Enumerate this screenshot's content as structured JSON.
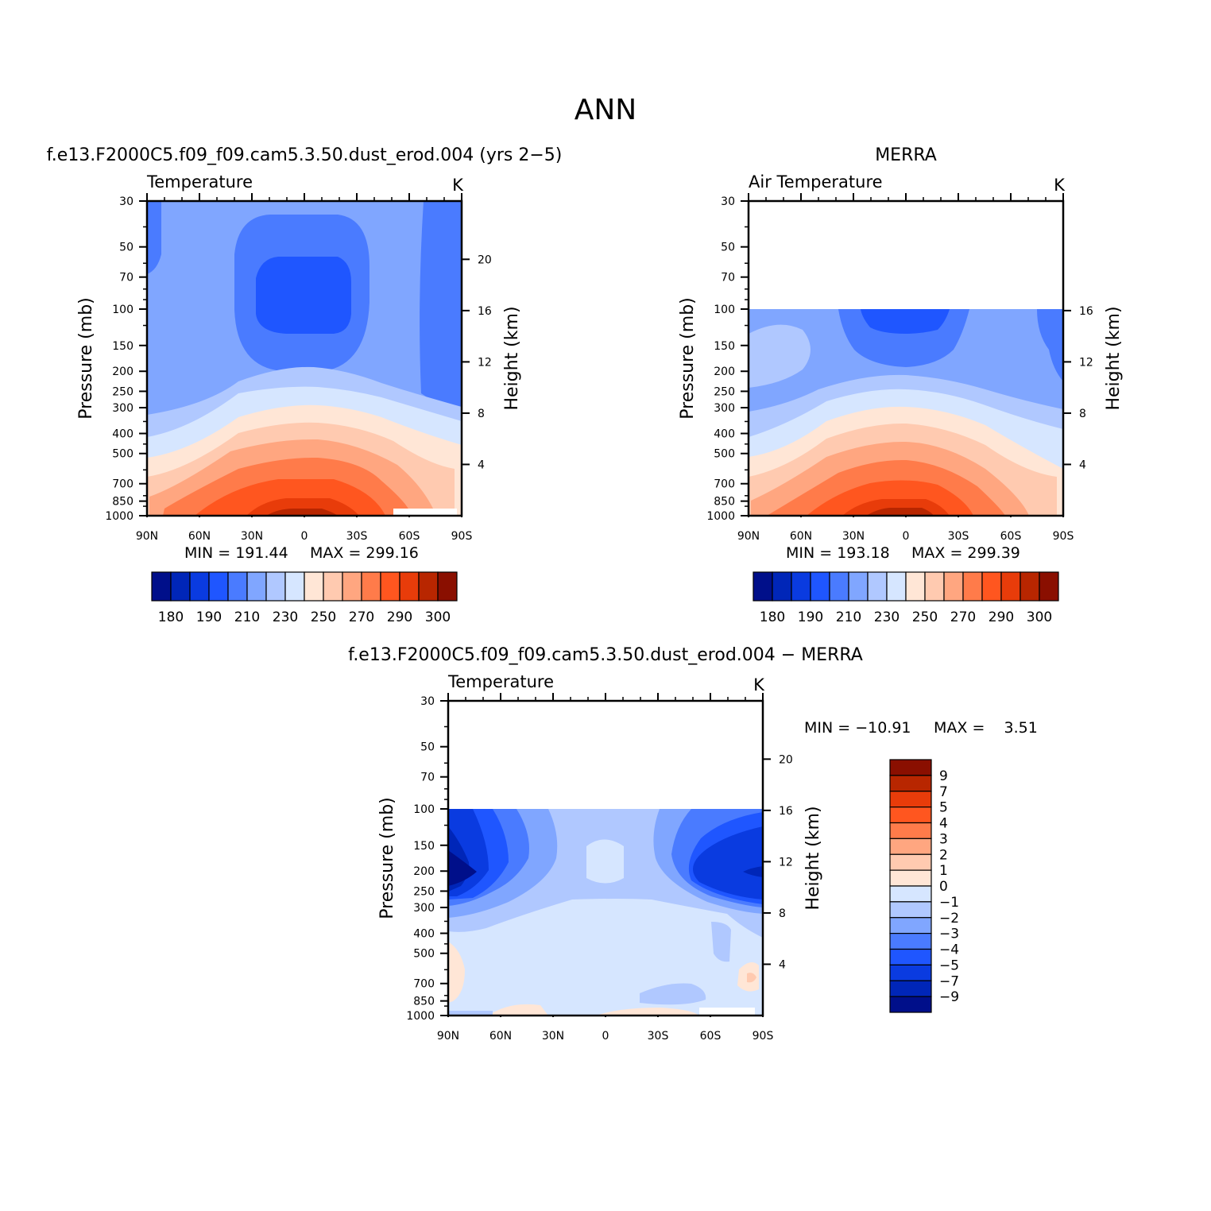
{
  "figure": {
    "title": "ANN",
    "panels": [
      {
        "id": "model",
        "case_title": "f.e13.F2000C5.f09_f09.cam5.3.50.dust_erod.004 (yrs 2−5)",
        "variable": "Temperature",
        "units": "K",
        "ylabel_left": "Pressure (mb)",
        "ylabel_right": "Height (km)",
        "min_label": "MIN = 191.44",
        "max_label": "MAX = 299.16"
      },
      {
        "id": "obs",
        "case_title": "MERRA",
        "variable": "Air Temperature",
        "units": "K",
        "ylabel_left": "Pressure (mb)",
        "ylabel_right": "Height (km)",
        "min_label": "MIN = 193.18",
        "max_label": "MAX = 299.39"
      },
      {
        "id": "diff",
        "case_title": "f.e13.F2000C5.f09_f09.cam5.3.50.dust_erod.004 − MERRA",
        "variable": "Temperature",
        "units": "K",
        "ylabel_left": "Pressure (mb)",
        "ylabel_right": "Height (km)",
        "min_label": "MIN = −10.91",
        "max_label": "MAX =    3.51"
      }
    ]
  },
  "chart_data": [
    {
      "type": "heatmap",
      "panel": "model",
      "x_ticks": [
        "90N",
        "60N",
        "30N",
        "0",
        "30S",
        "60S",
        "90S"
      ],
      "x_values": [
        90,
        60,
        30,
        0,
        -30,
        -60,
        -90
      ],
      "y_ticks": [
        30,
        50,
        70,
        100,
        150,
        200,
        250,
        300,
        400,
        500,
        700,
        850,
        1000
      ],
      "y_scale": "log",
      "y_range": [
        30,
        1000
      ],
      "right_ticks": [
        20,
        16,
        12,
        8,
        4
      ],
      "colorbar_labels": [
        "180",
        "190",
        "210",
        "230",
        "250",
        "270",
        "290",
        "300"
      ],
      "colorbar_colors": [
        "#000f8a",
        "#0026b8",
        "#0a3be0",
        "#1f56ff",
        "#4a7bff",
        "#80a6ff",
        "#b0c8ff",
        "#d6e6ff",
        "#ffe6d6",
        "#ffcab0",
        "#ffa680",
        "#ff7b4a",
        "#ff561f",
        "#e83c0a",
        "#b82600",
        "#8a0f00"
      ],
      "min": 191.44,
      "max": 299.16
    },
    {
      "type": "heatmap",
      "panel": "obs",
      "x_ticks": [
        "90N",
        "60N",
        "30N",
        "0",
        "30S",
        "60S",
        "90S"
      ],
      "x_values": [
        90,
        60,
        30,
        0,
        -30,
        -60,
        -90
      ],
      "y_ticks": [
        30,
        50,
        70,
        100,
        150,
        200,
        250,
        300,
        400,
        500,
        700,
        850,
        1000
      ],
      "y_scale": "log",
      "y_range": [
        30,
        1000
      ],
      "right_ticks": [
        16,
        12,
        8,
        4
      ],
      "colorbar_labels": [
        "180",
        "190",
        "210",
        "230",
        "250",
        "270",
        "290",
        "300"
      ],
      "colorbar_colors": [
        "#000f8a",
        "#0026b8",
        "#0a3be0",
        "#1f56ff",
        "#4a7bff",
        "#80a6ff",
        "#b0c8ff",
        "#d6e6ff",
        "#ffe6d6",
        "#ffcab0",
        "#ffa680",
        "#ff7b4a",
        "#ff561f",
        "#e83c0a",
        "#b82600",
        "#8a0f00"
      ],
      "min": 193.18,
      "max": 299.39
    },
    {
      "type": "heatmap",
      "panel": "diff",
      "x_ticks": [
        "90N",
        "60N",
        "30N",
        "0",
        "30S",
        "60S",
        "90S"
      ],
      "x_values": [
        90,
        60,
        30,
        0,
        -30,
        -60,
        -90
      ],
      "y_ticks": [
        30,
        50,
        70,
        100,
        150,
        200,
        250,
        300,
        400,
        500,
        700,
        850,
        1000
      ],
      "y_scale": "log",
      "y_range": [
        30,
        1000
      ],
      "right_ticks": [
        20,
        16,
        12,
        8,
        4
      ],
      "colorbar_labels": [
        "9",
        "7",
        "5",
        "4",
        "3",
        "2",
        "1",
        "0",
        "−1",
        "−2",
        "−3",
        "−4",
        "−5",
        "−7",
        "−9"
      ],
      "colorbar_colors": [
        "#8a0f00",
        "#b82600",
        "#e83c0a",
        "#ff561f",
        "#ff7b4a",
        "#ffa680",
        "#ffcab0",
        "#ffe6d6",
        "#d6e6ff",
        "#b0c8ff",
        "#80a6ff",
        "#4a7bff",
        "#1f56ff",
        "#0a3be0",
        "#0026b8",
        "#000f8a"
      ],
      "min": -10.91,
      "max": 3.51
    }
  ]
}
